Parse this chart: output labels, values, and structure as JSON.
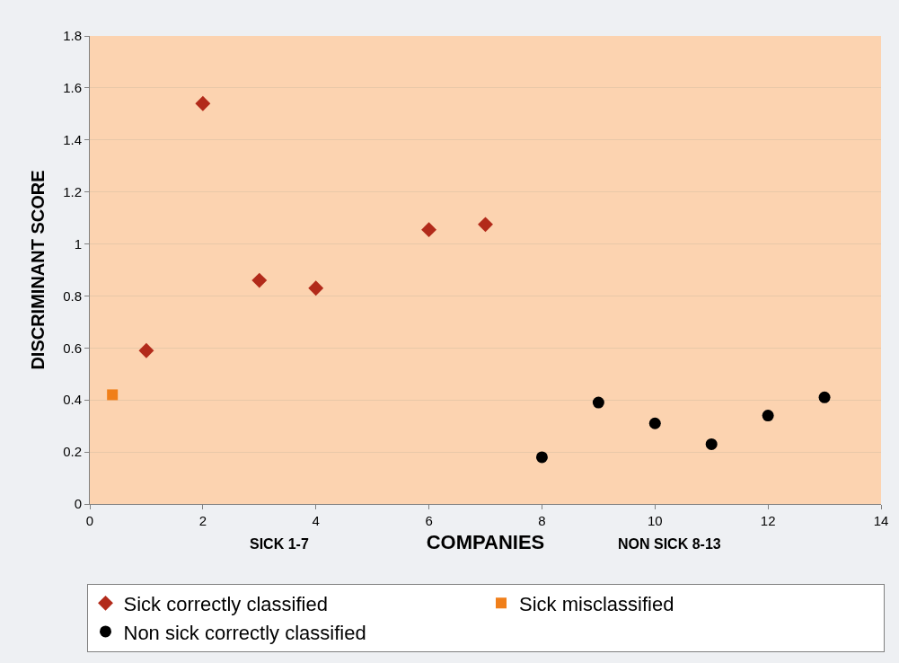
{
  "chart_data": {
    "type": "scatter",
    "xlabel": "COMPANIES",
    "ylabel": "DISCRIMINANT SCORE",
    "annotations": [
      "SICK 1-7",
      "NON SICK 8-13"
    ],
    "series": [
      {
        "name": "Sick correctly classified",
        "color": "#b22a1a",
        "marker": "diamond",
        "x": [
          1,
          2,
          3,
          4,
          6,
          7
        ],
        "values": [
          0.59,
          1.54,
          0.86,
          0.83,
          1.055,
          1.075
        ]
      },
      {
        "name": "Sick misclassified",
        "color": "#f07f1a",
        "marker": "square",
        "x": [
          0.4
        ],
        "values": [
          0.42
        ]
      },
      {
        "name": "Non sick correctly classified",
        "color": "#000000",
        "marker": "circle",
        "x": [
          8,
          9,
          10,
          11,
          12,
          13
        ],
        "values": [
          0.18,
          0.39,
          0.31,
          0.23,
          0.34,
          0.41
        ]
      }
    ],
    "xlim": [
      0,
      14
    ],
    "xticks": [
      0,
      2,
      4,
      6,
      8,
      10,
      12,
      14
    ],
    "ylim": [
      0,
      1.8
    ],
    "yticks": [
      0,
      0.2,
      0.4,
      0.6,
      0.8,
      1,
      1.2,
      1.4,
      1.6,
      1.8
    ],
    "grid": "y",
    "legend": "bottom"
  }
}
